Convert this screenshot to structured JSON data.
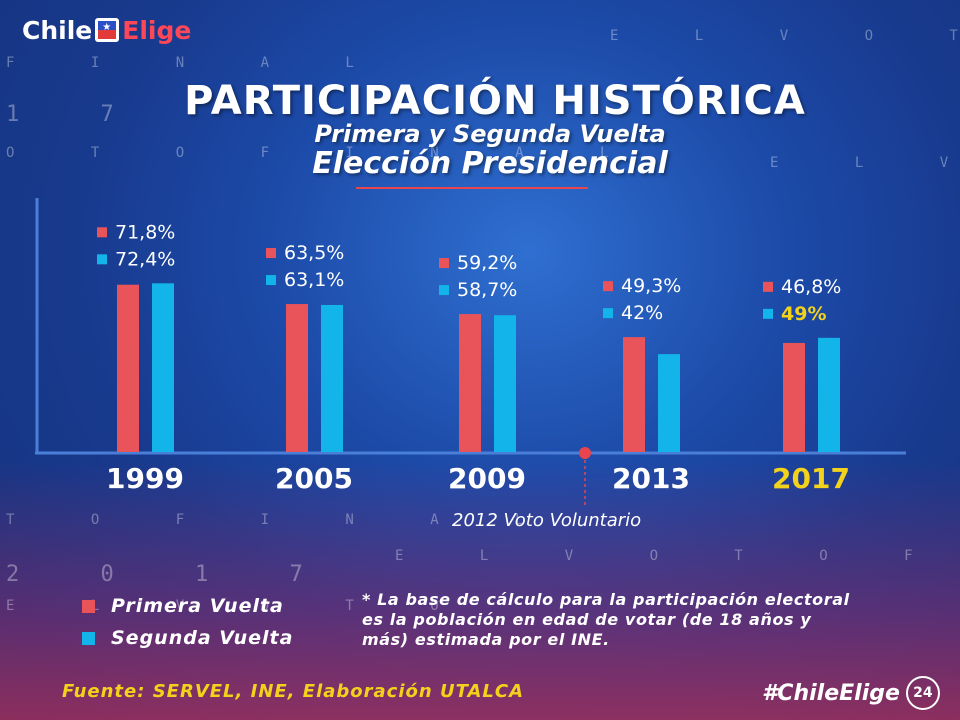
{
  "header": {
    "logo_part1": "Chile",
    "logo_part2": "Elige",
    "title": "PARTICIPACIÓN HISTÓRICA",
    "subtitle1": "Primera y Segunda Vuelta",
    "subtitle2": "Elección Presidencial"
  },
  "colors": {
    "primera": "#e8545a",
    "segunda": "#12b4ea",
    "highlight": "#f3d21c",
    "background": "#1c4aa8"
  },
  "chart_data": {
    "type": "bar",
    "categories": [
      "1999",
      "2005",
      "2009",
      "2013",
      "2017"
    ],
    "series": [
      {
        "name": "Primera Vuelta",
        "values": [
          71.8,
          63.5,
          59.2,
          49.3,
          46.8
        ],
        "labels": [
          "71,8%",
          "63,5%",
          "59,2%",
          "49,3%",
          "46,8%"
        ]
      },
      {
        "name": "Segunda Vuelta",
        "values": [
          72.4,
          63.1,
          58.7,
          42,
          49
        ],
        "labels": [
          "72,4%",
          "63,1%",
          "58,7%",
          "42%",
          "49%"
        ]
      }
    ],
    "highlight_category": "2017",
    "annotation": "2012 Voto Voluntario",
    "title": "PARTICIPACIÓN HISTÓRICA",
    "grid": false,
    "legend_position": "bottom-left"
  },
  "note": "* La base de cálculo para la participación electoral es la población en edad de votar (de 18 años y más) estimada por el INE.",
  "source": {
    "label": "Fuente:",
    "text": "SERVEL, INE, Elaboración UTALCA"
  },
  "hashtag": "#ChileElige",
  "channel_badge": "24",
  "background_text": {
    "row1": "E L V O T O",
    "row2": "F I N A L",
    "row3": "1 7",
    "row4": "O T O F I N A L",
    "row5": "E L V O T",
    "row6": "T O F I N A L",
    "row7": "E L V O T O F I N A L",
    "row8": "2 0 1 7",
    "row9": "E L V O T O"
  }
}
